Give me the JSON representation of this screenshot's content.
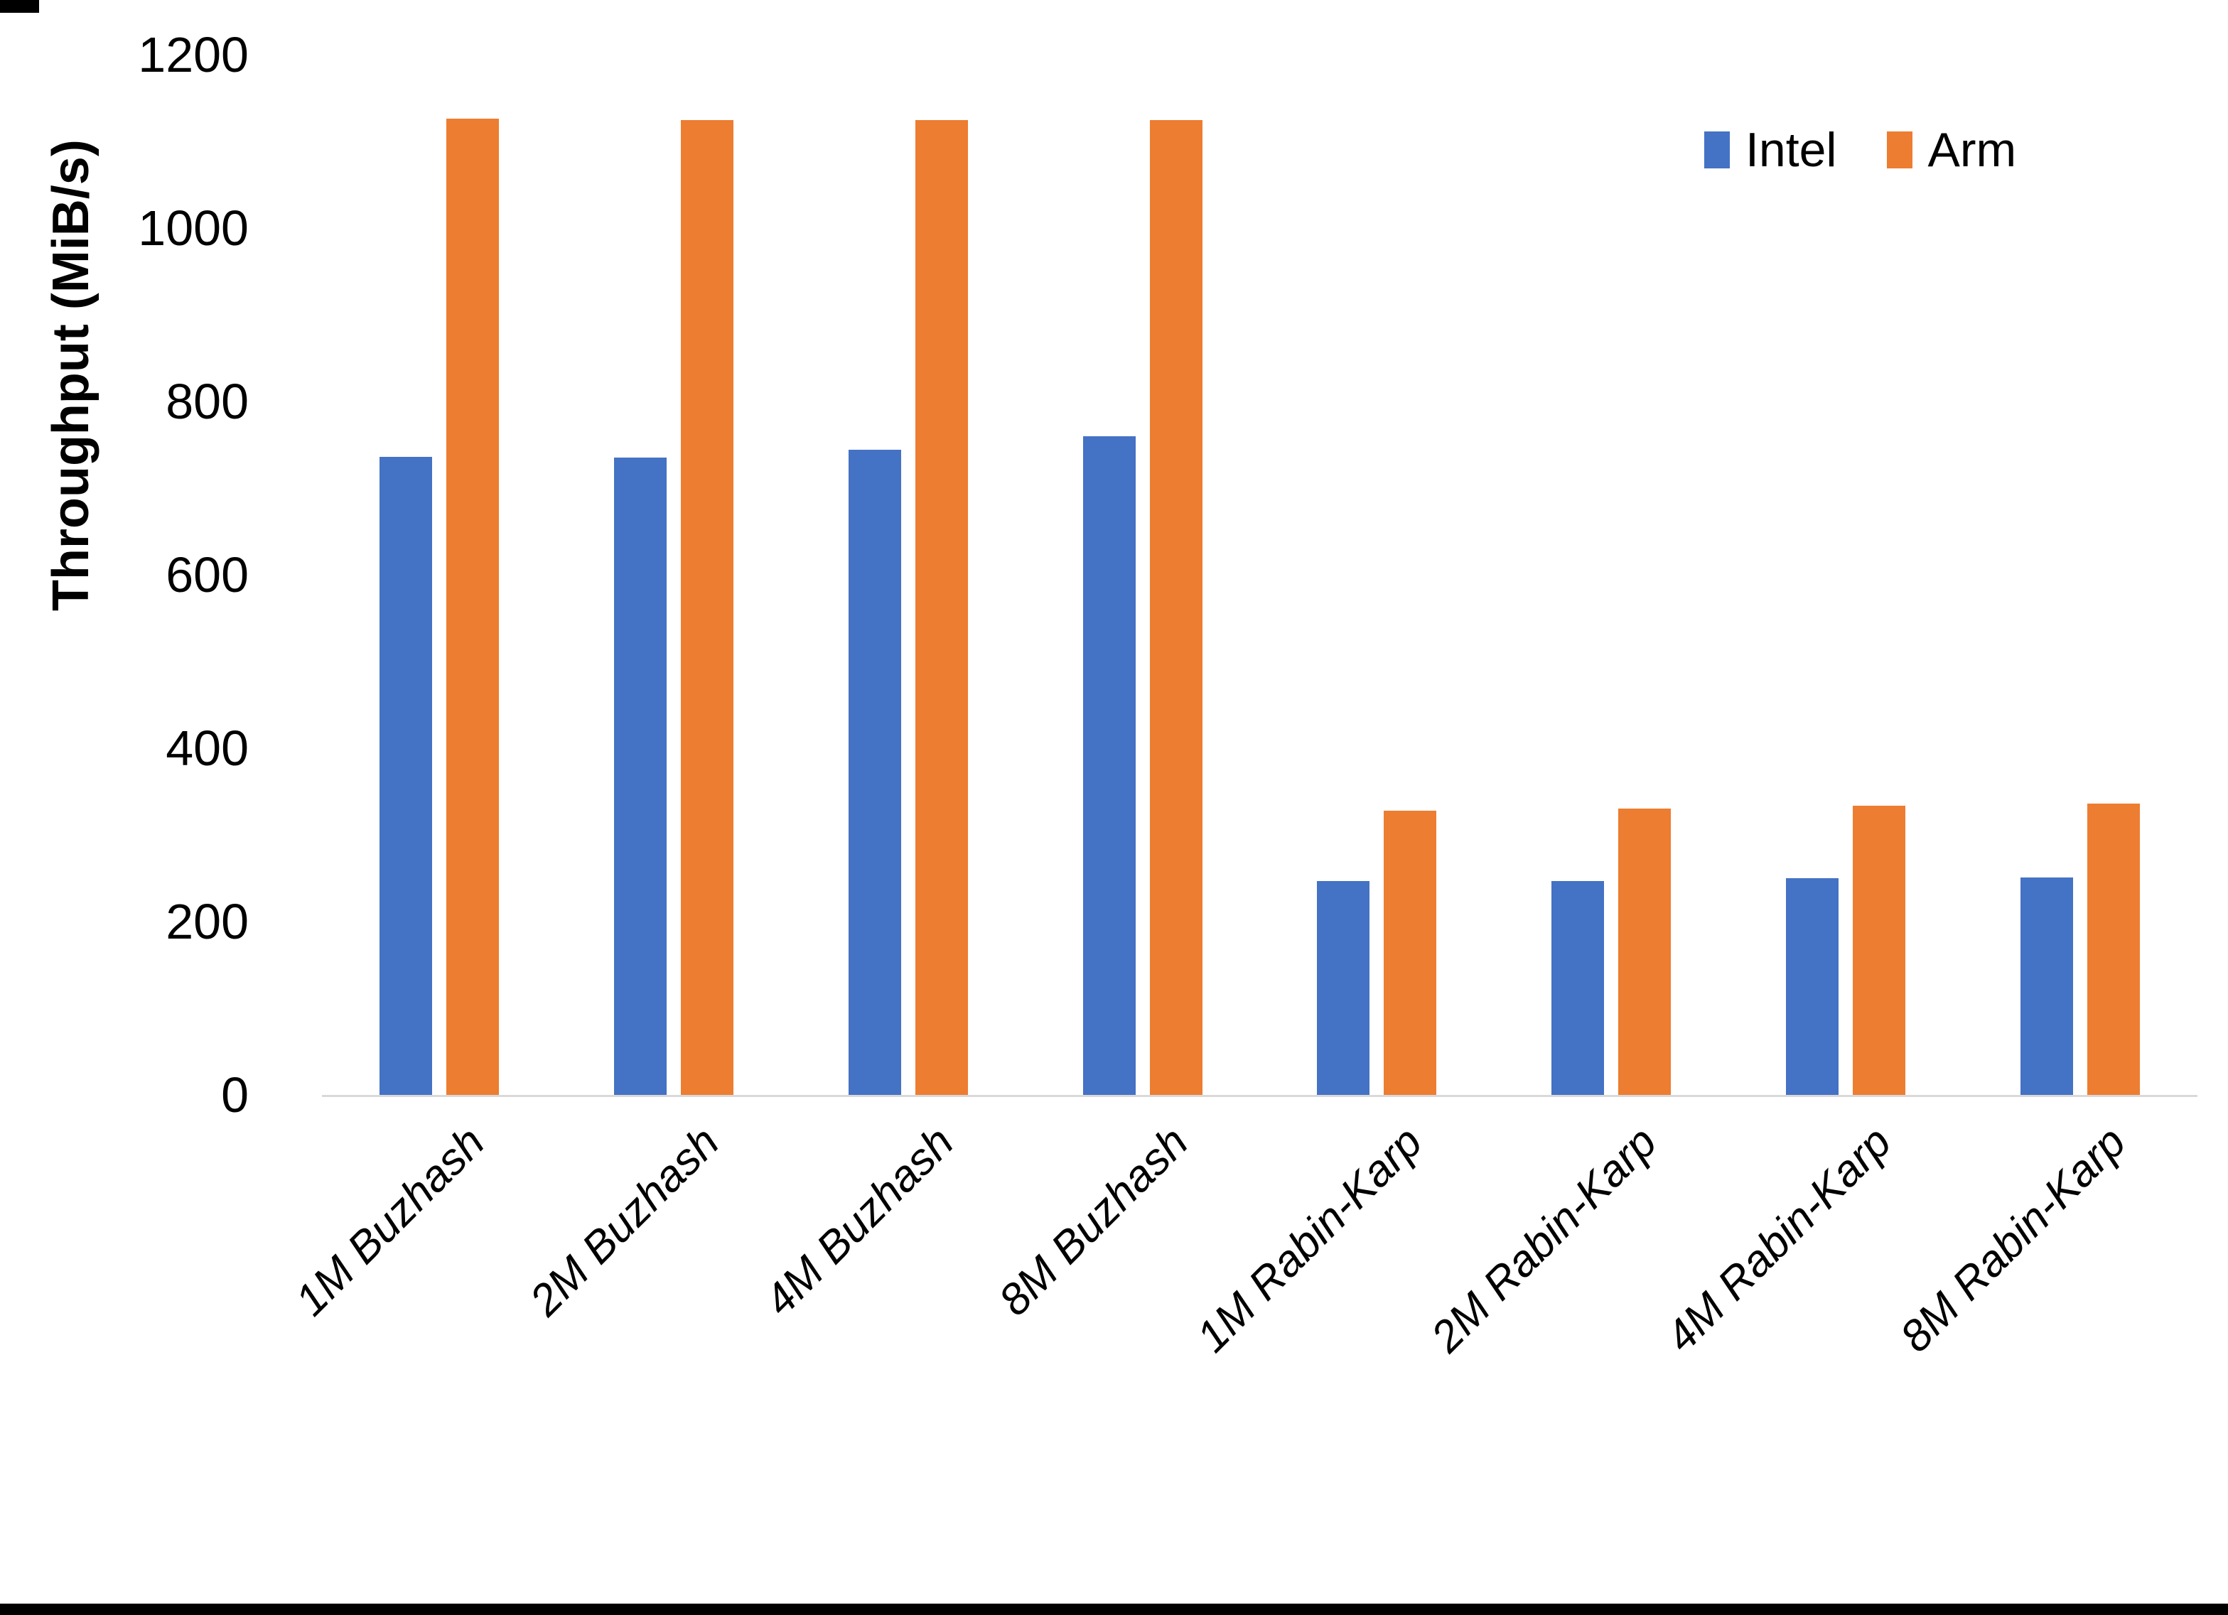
{
  "page": {
    "background": "#ffffff",
    "corner_mark_color": "#000000",
    "bottom_border_color": "#000000"
  },
  "chart_data": {
    "type": "bar",
    "title": "",
    "xlabel": "",
    "ylabel": "Throughput (MiB/s)",
    "ylim": [
      0,
      1200
    ],
    "yticks": [
      0,
      200,
      400,
      600,
      800,
      1000,
      1200
    ],
    "grid": false,
    "legend_position": "top-right",
    "axis_line_color": "#d9d9d9",
    "text_color": "#000000",
    "categories": [
      "1M Buzhash",
      "2M Buzhash",
      "4M Buzhash",
      "8M Buzhash",
      "1M Rabin-Karp",
      "2M Rabin-Karp",
      "4M Rabin-Karp",
      "8M Rabin-Karp"
    ],
    "series": [
      {
        "name": "Intel",
        "color": "#4472C4",
        "values": [
          736,
          735,
          744,
          760,
          247,
          247,
          250,
          251
        ]
      },
      {
        "name": "Arm",
        "color": "#ED7D31",
        "values": [
          1126,
          1125,
          1125,
          1125,
          328,
          330,
          334,
          336
        ]
      }
    ]
  }
}
